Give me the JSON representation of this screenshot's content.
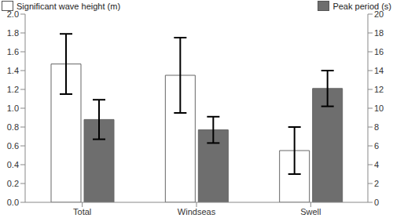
{
  "chart_data": {
    "type": "bar",
    "categories": [
      "Total",
      "Windseas",
      "Swell"
    ],
    "series": [
      {
        "name": "Significant wave height (m)",
        "color": "#ffffff",
        "values": [
          1.47,
          1.35,
          0.55
        ],
        "errors": [
          0.32,
          0.4,
          0.25
        ]
      },
      {
        "name": "Peak period (s)",
        "color": "#6e6e6e",
        "axis": "y2",
        "values": [
          8.8,
          7.7,
          12.1
        ],
        "errors": [
          2.1,
          1.4,
          1.9
        ]
      }
    ],
    "ylim": [
      0,
      2
    ],
    "yticks": [
      {
        "value": 0,
        "label": "0.0"
      },
      0.2,
      0.4,
      0.6,
      0.8,
      {
        "value": 1,
        "label": "1.0"
      },
      1.2,
      1.4,
      1.6,
      1.8,
      {
        "value": 2,
        "label": "2.0"
      }
    ],
    "y2lim": [
      0,
      20
    ],
    "y2ticks": [
      0,
      2,
      4,
      6,
      8,
      10,
      12,
      14,
      16,
      18,
      20
    ],
    "grid": false,
    "legend": "top"
  }
}
